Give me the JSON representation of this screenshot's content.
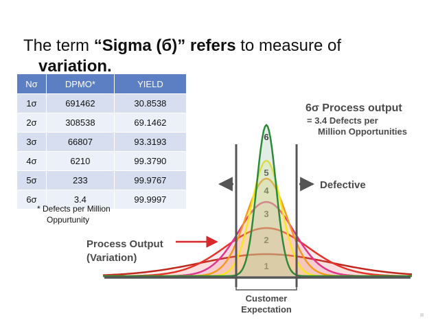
{
  "heading": {
    "term": "The term ",
    "sigma": "“Sigma (б)” refers",
    "rest": " to measure of",
    "line2": "variation."
  },
  "table": {
    "headers": [
      "Nσ",
      "DPMO*",
      "YIELD"
    ],
    "rows": [
      [
        "1σ",
        "691462",
        "30.8538"
      ],
      [
        "2σ",
        "308538",
        "69.1462"
      ],
      [
        "3σ",
        "66807",
        "93.3193"
      ],
      [
        "4σ",
        "6210",
        "99.3790"
      ],
      [
        "5σ",
        "233",
        "99.9767"
      ],
      [
        "6σ",
        "3.4",
        "99.9997"
      ]
    ]
  },
  "footnote": {
    "line1": "* Defects per Million",
    "line2": "Oppurtunity"
  },
  "diagram": {
    "six_sigma_title": "6σ Process output",
    "six_sigma_sub1": "= 3.4 Defects per",
    "six_sigma_sub2": "Million Opportunities",
    "defective_label": "Defective",
    "process_output_line1": "Process Output",
    "process_output_line2": "(Variation)",
    "customer_line1": "Customer",
    "customer_line2": "Expectation",
    "curves": [
      {
        "label": "1",
        "color": "#c0281e"
      },
      {
        "label": "2",
        "color": "#e5332a"
      },
      {
        "label": "3",
        "color": "#e0358c"
      },
      {
        "label": "4",
        "color": "#f39a1e"
      },
      {
        "label": "5",
        "color": "#f5e61e"
      },
      {
        "label": "6",
        "color": "#2a8a3a"
      }
    ]
  }
}
